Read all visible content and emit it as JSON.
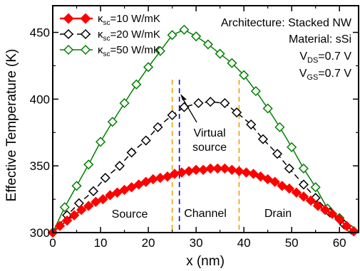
{
  "chart_data": {
    "type": "line",
    "xlabel": "x (nm)",
    "ylabel": "Effective Temperature (K)",
    "xlim": [
      0,
      64
    ],
    "ylim": [
      300,
      470
    ],
    "xticks": [
      0,
      10,
      20,
      30,
      40,
      50,
      60
    ],
    "yticks": [
      300,
      350,
      400,
      450
    ],
    "xtick_labels": [
      "0",
      "10",
      "20",
      "30",
      "40",
      "50",
      "60"
    ],
    "ytick_labels": [
      "300",
      "350",
      "400",
      "450"
    ],
    "grid": false,
    "legend_position": "top-left",
    "series": [
      {
        "name_main": "κ",
        "name_sub": "sc",
        "name_rest": "=10 W/mK",
        "color": "#ff0000",
        "marker": "diamond-filled",
        "dash": "solid",
        "x": [
          0,
          1.5,
          3,
          4.5,
          6,
          7.5,
          9,
          10.5,
          12,
          13.5,
          15,
          16.5,
          18,
          19.5,
          21,
          22.5,
          24,
          25.5,
          27,
          28.5,
          30,
          31.5,
          33,
          34.5,
          36,
          37.5,
          39,
          40.5,
          42,
          43.5,
          45,
          46.5,
          48,
          49.5,
          51,
          52.5,
          54,
          55.5,
          57,
          58.5,
          60,
          61.5,
          63
        ],
        "y": [
          300,
          305,
          309,
          313,
          317,
          320,
          323,
          325,
          328,
          330,
          332,
          334,
          336,
          338,
          340,
          341,
          342,
          344,
          345,
          346,
          347,
          347,
          348,
          348,
          348,
          347,
          346,
          345,
          344,
          342,
          340,
          338,
          335,
          333,
          330,
          327,
          324,
          320,
          317,
          314,
          310,
          305,
          301
        ]
      },
      {
        "name_main": "κ",
        "name_sub": "sc",
        "name_rest": "=20 W/mK",
        "color": "#000000",
        "marker": "diamond-open",
        "dash": "dashed",
        "x": [
          0,
          3,
          5.5,
          8.5,
          11,
          14,
          16.5,
          19.5,
          22,
          25,
          27.5,
          30.5,
          33,
          36,
          38.5,
          41.5,
          44,
          47,
          49.5,
          52.5,
          55,
          58,
          61,
          63
        ],
        "y": [
          300,
          313,
          322,
          331,
          341,
          350,
          360,
          369,
          379,
          388,
          394,
          397,
          398,
          397,
          390,
          381,
          370,
          359,
          348,
          336,
          326,
          315,
          306,
          301
        ]
      },
      {
        "name_main": "κ",
        "name_sub": "sc",
        "name_rest": "=50 W/mK",
        "color": "#008000",
        "marker": "diamond-open",
        "dash": "solid",
        "x": [
          0,
          2.5,
          5,
          7.5,
          10,
          12.5,
          15,
          17.5,
          20,
          22.5,
          25,
          27.5,
          30,
          32.5,
          35,
          37.5,
          40,
          42.5,
          45,
          47.5,
          50,
          52.5,
          55,
          57.5,
          60,
          62.5
        ],
        "y": [
          300,
          319,
          335,
          351,
          368,
          383,
          397,
          411,
          424,
          436,
          448,
          452,
          447,
          441,
          434,
          427,
          418,
          406,
          393,
          379,
          364,
          348,
          334,
          318,
          311,
          302
        ]
      }
    ],
    "vlines": [
      {
        "x": 25,
        "color": "#f0a000"
      },
      {
        "x": 26.5,
        "color": "#0000cc"
      },
      {
        "x": 39,
        "color": "#f0a000"
      }
    ],
    "annotations": {
      "architecture": "Architecture: Stacked NW",
      "material": "Material: sSi",
      "vds_main": "V",
      "vds_sub": "DS",
      "vds_rest": "=0.7 V",
      "vgs_main": "V",
      "vgs_sub": "GS",
      "vgs_rest": "=0.7 V",
      "virtual_line1": "Virtual",
      "virtual_line2": "source",
      "source": "Source",
      "channel": "Channel",
      "drain": "Drain"
    }
  }
}
